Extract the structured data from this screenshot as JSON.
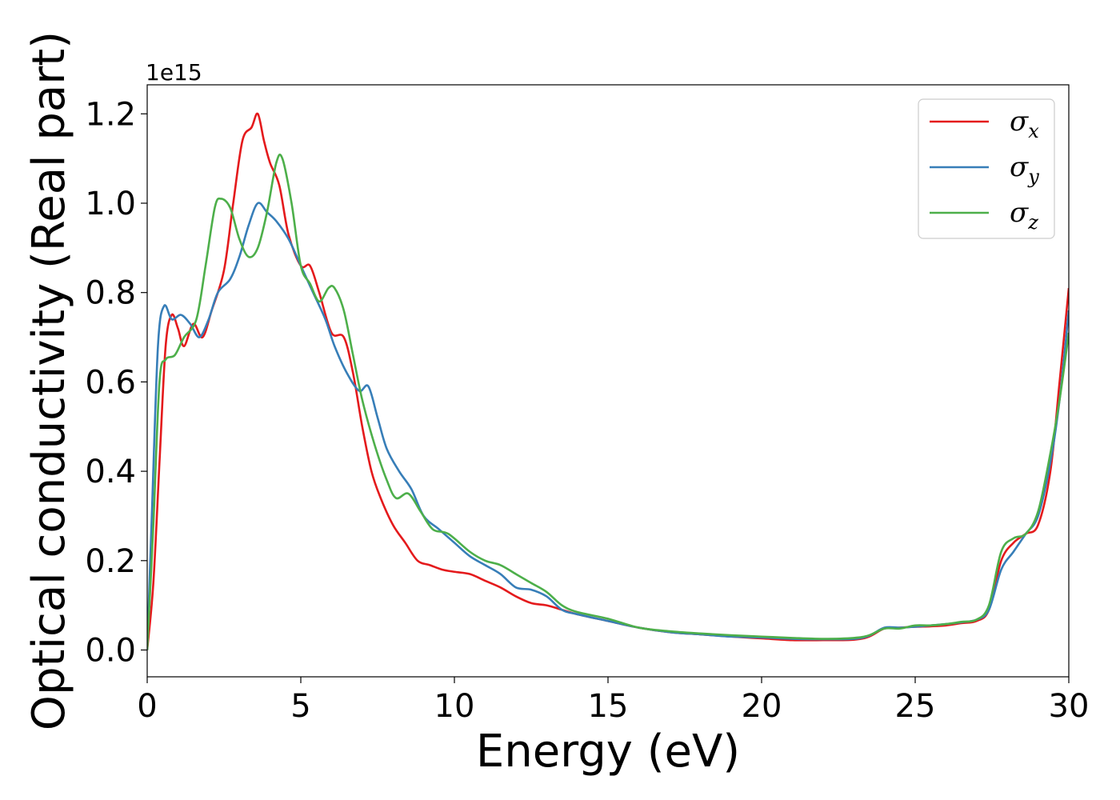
{
  "chart_data": {
    "type": "line",
    "xlabel": "Energy (eV)",
    "ylabel": "Optical conductivity (Real part)",
    "y_offset_label": "1e15",
    "xlim": [
      0,
      30
    ],
    "ylim": [
      -0.06,
      1.265
    ],
    "x_ticks": [
      0,
      5,
      10,
      15,
      20,
      25,
      30
    ],
    "x_tick_labels": [
      "0",
      "5",
      "10",
      "15",
      "20",
      "25",
      "30"
    ],
    "y_ticks": [
      0.0,
      0.2,
      0.4,
      0.6,
      0.8,
      1.0,
      1.2
    ],
    "y_tick_labels": [
      "0.0",
      "0.2",
      "0.4",
      "0.6",
      "0.8",
      "1.0",
      "1.2"
    ],
    "grid": false,
    "legend_position": "top-right",
    "series": [
      {
        "name": "σx",
        "legend_base": "σ",
        "legend_sub": "x",
        "color": "#e41a1c",
        "points": [
          [
            0,
            0.0
          ],
          [
            0.2,
            0.15
          ],
          [
            0.4,
            0.42
          ],
          [
            0.6,
            0.68
          ],
          [
            0.8,
            0.75
          ],
          [
            1.0,
            0.72
          ],
          [
            1.2,
            0.68
          ],
          [
            1.5,
            0.73
          ],
          [
            1.8,
            0.7
          ],
          [
            2.1,
            0.76
          ],
          [
            2.5,
            0.85
          ],
          [
            2.8,
            1.0
          ],
          [
            3.1,
            1.14
          ],
          [
            3.4,
            1.17
          ],
          [
            3.6,
            1.2
          ],
          [
            3.8,
            1.14
          ],
          [
            4.0,
            1.09
          ],
          [
            4.3,
            1.04
          ],
          [
            4.6,
            0.93
          ],
          [
            5.0,
            0.86
          ],
          [
            5.3,
            0.86
          ],
          [
            5.6,
            0.8
          ],
          [
            6.0,
            0.71
          ],
          [
            6.4,
            0.7
          ],
          [
            6.7,
            0.62
          ],
          [
            7.0,
            0.5
          ],
          [
            7.3,
            0.4
          ],
          [
            7.6,
            0.34
          ],
          [
            8.0,
            0.28
          ],
          [
            8.4,
            0.24
          ],
          [
            8.8,
            0.2
          ],
          [
            9.2,
            0.19
          ],
          [
            9.6,
            0.18
          ],
          [
            10.0,
            0.175
          ],
          [
            10.5,
            0.17
          ],
          [
            11.0,
            0.155
          ],
          [
            11.5,
            0.14
          ],
          [
            12.0,
            0.12
          ],
          [
            12.5,
            0.105
          ],
          [
            13.0,
            0.1
          ],
          [
            13.5,
            0.09
          ],
          [
            14.0,
            0.08
          ],
          [
            15.0,
            0.065
          ],
          [
            16.0,
            0.05
          ],
          [
            17.0,
            0.04
          ],
          [
            18.0,
            0.035
          ],
          [
            19.0,
            0.03
          ],
          [
            20.0,
            0.026
          ],
          [
            21.0,
            0.022
          ],
          [
            22.0,
            0.022
          ],
          [
            23.0,
            0.023
          ],
          [
            23.5,
            0.03
          ],
          [
            24.0,
            0.048
          ],
          [
            24.5,
            0.05
          ],
          [
            25.0,
            0.052
          ],
          [
            25.5,
            0.053
          ],
          [
            26.0,
            0.055
          ],
          [
            26.5,
            0.06
          ],
          [
            27.0,
            0.065
          ],
          [
            27.4,
            0.09
          ],
          [
            27.8,
            0.2
          ],
          [
            28.2,
            0.24
          ],
          [
            28.6,
            0.26
          ],
          [
            29.0,
            0.28
          ],
          [
            29.4,
            0.4
          ],
          [
            29.7,
            0.6
          ],
          [
            30.0,
            0.81
          ]
        ]
      },
      {
        "name": "σy",
        "legend_base": "σ",
        "legend_sub": "y",
        "color": "#377eb8",
        "points": [
          [
            0,
            0.0
          ],
          [
            0.15,
            0.3
          ],
          [
            0.35,
            0.68
          ],
          [
            0.55,
            0.77
          ],
          [
            0.8,
            0.74
          ],
          [
            1.1,
            0.75
          ],
          [
            1.4,
            0.73
          ],
          [
            1.7,
            0.7
          ],
          [
            2.0,
            0.74
          ],
          [
            2.3,
            0.8
          ],
          [
            2.7,
            0.83
          ],
          [
            3.0,
            0.88
          ],
          [
            3.3,
            0.95
          ],
          [
            3.6,
            1.0
          ],
          [
            3.9,
            0.98
          ],
          [
            4.2,
            0.96
          ],
          [
            4.6,
            0.92
          ],
          [
            5.0,
            0.86
          ],
          [
            5.4,
            0.8
          ],
          [
            5.8,
            0.74
          ],
          [
            6.1,
            0.68
          ],
          [
            6.5,
            0.62
          ],
          [
            6.9,
            0.58
          ],
          [
            7.2,
            0.59
          ],
          [
            7.5,
            0.52
          ],
          [
            7.8,
            0.45
          ],
          [
            8.2,
            0.4
          ],
          [
            8.6,
            0.36
          ],
          [
            9.0,
            0.3
          ],
          [
            9.5,
            0.27
          ],
          [
            10.0,
            0.24
          ],
          [
            10.5,
            0.21
          ],
          [
            11.0,
            0.19
          ],
          [
            11.5,
            0.17
          ],
          [
            12.0,
            0.14
          ],
          [
            12.5,
            0.135
          ],
          [
            13.0,
            0.12
          ],
          [
            13.5,
            0.09
          ],
          [
            14.0,
            0.08
          ],
          [
            15.0,
            0.065
          ],
          [
            16.0,
            0.05
          ],
          [
            17.0,
            0.04
          ],
          [
            18.0,
            0.035
          ],
          [
            19.0,
            0.03
          ],
          [
            20.0,
            0.028
          ],
          [
            21.0,
            0.025
          ],
          [
            22.0,
            0.024
          ],
          [
            23.0,
            0.025
          ],
          [
            23.5,
            0.032
          ],
          [
            24.0,
            0.05
          ],
          [
            24.5,
            0.05
          ],
          [
            25.0,
            0.052
          ],
          [
            25.5,
            0.055
          ],
          [
            26.0,
            0.058
          ],
          [
            26.5,
            0.062
          ],
          [
            27.0,
            0.068
          ],
          [
            27.4,
            0.09
          ],
          [
            27.8,
            0.18
          ],
          [
            28.2,
            0.22
          ],
          [
            28.6,
            0.26
          ],
          [
            29.0,
            0.3
          ],
          [
            29.4,
            0.42
          ],
          [
            29.7,
            0.56
          ],
          [
            30.0,
            0.76
          ]
        ]
      },
      {
        "name": "σz",
        "legend_base": "σ",
        "legend_sub": "z",
        "color": "#4daf4a",
        "points": [
          [
            0,
            0.0
          ],
          [
            0.2,
            0.28
          ],
          [
            0.4,
            0.6
          ],
          [
            0.6,
            0.65
          ],
          [
            0.9,
            0.66
          ],
          [
            1.2,
            0.7
          ],
          [
            1.6,
            0.74
          ],
          [
            1.9,
            0.86
          ],
          [
            2.2,
            0.99
          ],
          [
            2.4,
            1.01
          ],
          [
            2.7,
            0.99
          ],
          [
            3.0,
            0.92
          ],
          [
            3.3,
            0.88
          ],
          [
            3.6,
            0.9
          ],
          [
            3.9,
            0.98
          ],
          [
            4.2,
            1.09
          ],
          [
            4.4,
            1.1
          ],
          [
            4.7,
            1.0
          ],
          [
            5.0,
            0.86
          ],
          [
            5.3,
            0.82
          ],
          [
            5.6,
            0.78
          ],
          [
            5.9,
            0.81
          ],
          [
            6.1,
            0.81
          ],
          [
            6.4,
            0.76
          ],
          [
            6.7,
            0.66
          ],
          [
            7.0,
            0.56
          ],
          [
            7.4,
            0.46
          ],
          [
            7.8,
            0.38
          ],
          [
            8.1,
            0.34
          ],
          [
            8.5,
            0.35
          ],
          [
            8.9,
            0.31
          ],
          [
            9.3,
            0.27
          ],
          [
            9.8,
            0.26
          ],
          [
            10.5,
            0.22
          ],
          [
            11.0,
            0.2
          ],
          [
            11.5,
            0.19
          ],
          [
            12.0,
            0.17
          ],
          [
            12.5,
            0.15
          ],
          [
            13.0,
            0.13
          ],
          [
            13.5,
            0.1
          ],
          [
            14.0,
            0.085
          ],
          [
            15.0,
            0.07
          ],
          [
            16.0,
            0.05
          ],
          [
            17.0,
            0.042
          ],
          [
            18.0,
            0.037
          ],
          [
            19.0,
            0.033
          ],
          [
            20.0,
            0.03
          ],
          [
            21.0,
            0.027
          ],
          [
            22.0,
            0.025
          ],
          [
            23.0,
            0.027
          ],
          [
            23.5,
            0.033
          ],
          [
            24.0,
            0.048
          ],
          [
            24.5,
            0.048
          ],
          [
            25.0,
            0.055
          ],
          [
            25.5,
            0.055
          ],
          [
            26.0,
            0.058
          ],
          [
            26.5,
            0.063
          ],
          [
            27.0,
            0.068
          ],
          [
            27.4,
            0.1
          ],
          [
            27.8,
            0.22
          ],
          [
            28.2,
            0.25
          ],
          [
            28.6,
            0.26
          ],
          [
            29.0,
            0.31
          ],
          [
            29.4,
            0.44
          ],
          [
            29.7,
            0.56
          ],
          [
            30.0,
            0.71
          ]
        ]
      }
    ]
  }
}
